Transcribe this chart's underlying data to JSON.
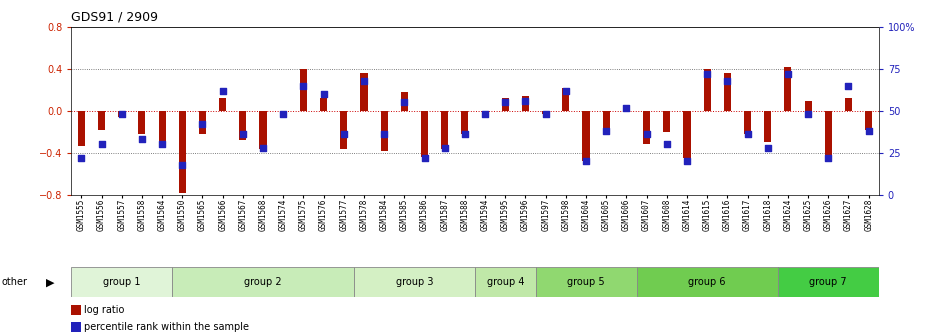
{
  "title": "GDS91 / 2909",
  "samples": [
    "GSM1555",
    "GSM1556",
    "GSM1557",
    "GSM1558",
    "GSM1564",
    "GSM1550",
    "GSM1565",
    "GSM1566",
    "GSM1567",
    "GSM1568",
    "GSM1574",
    "GSM1575",
    "GSM1576",
    "GSM1577",
    "GSM1578",
    "GSM1584",
    "GSM1585",
    "GSM1586",
    "GSM1587",
    "GSM1588",
    "GSM1594",
    "GSM1595",
    "GSM1596",
    "GSM1597",
    "GSM1598",
    "GSM1604",
    "GSM1605",
    "GSM1606",
    "GSM1607",
    "GSM1608",
    "GSM1614",
    "GSM1615",
    "GSM1616",
    "GSM1617",
    "GSM1618",
    "GSM1624",
    "GSM1625",
    "GSM1626",
    "GSM1627",
    "GSM1628"
  ],
  "log_ratio": [
    -0.33,
    -0.18,
    -0.06,
    -0.22,
    -0.3,
    -0.78,
    -0.22,
    0.12,
    -0.28,
    -0.36,
    -0.04,
    0.4,
    0.12,
    -0.36,
    0.36,
    -0.38,
    0.18,
    -0.44,
    -0.36,
    -0.22,
    -0.05,
    0.12,
    0.14,
    -0.03,
    0.22,
    -0.48,
    -0.22,
    0.03,
    -0.32,
    -0.2,
    -0.45,
    0.4,
    0.36,
    -0.22,
    -0.3,
    0.42,
    0.09,
    -0.44,
    0.12,
    -0.18
  ],
  "percentile": [
    22,
    30,
    48,
    33,
    30,
    18,
    42,
    62,
    36,
    28,
    48,
    65,
    60,
    36,
    68,
    36,
    55,
    22,
    28,
    36,
    48,
    55,
    56,
    48,
    62,
    20,
    38,
    52,
    36,
    30,
    20,
    72,
    68,
    36,
    28,
    72,
    48,
    22,
    65,
    38
  ],
  "groups": [
    {
      "name": "group 1",
      "start": 0,
      "end": 4,
      "color": "#e0f4d8"
    },
    {
      "name": "group 2",
      "start": 5,
      "end": 13,
      "color": "#c8ecb8"
    },
    {
      "name": "group 3",
      "start": 14,
      "end": 19,
      "color": "#d4f0c4"
    },
    {
      "name": "group 4",
      "start": 20,
      "end": 22,
      "color": "#c0e8a8"
    },
    {
      "name": "group 5",
      "start": 23,
      "end": 27,
      "color": "#90d870"
    },
    {
      "name": "group 6",
      "start": 28,
      "end": 34,
      "color": "#70cc50"
    },
    {
      "name": "group 7",
      "start": 35,
      "end": 39,
      "color": "#44cc44"
    }
  ],
  "bar_color": "#aa1100",
  "dot_color": "#2222bb",
  "ylim_left": [
    -0.8,
    0.8
  ],
  "ylim_right": [
    0,
    100
  ],
  "yticks_left": [
    -0.8,
    -0.4,
    0.0,
    0.4,
    0.8
  ],
  "yticks_right": [
    0,
    25,
    50,
    75,
    100
  ],
  "ytick_labels_right": [
    "0",
    "25",
    "50",
    "75",
    "100%"
  ]
}
